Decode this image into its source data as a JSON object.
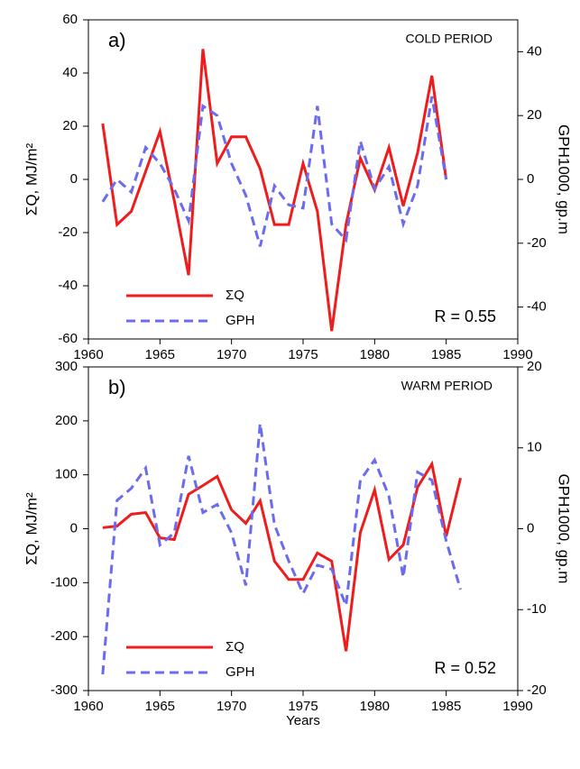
{
  "chart_data": [
    {
      "type": "line",
      "panel_label": "a)",
      "annotation": "COLD PERIOD",
      "r_label": "R = 0.55",
      "ylabel": "ΣQ, MJ/m²",
      "y2label": "GPH1000, gp.m",
      "legend": "lower left",
      "x": [
        1961,
        1962,
        1963,
        1964,
        1965,
        1966,
        1967,
        1968,
        1969,
        1970,
        1971,
        1972,
        1973,
        1974,
        1975,
        1976,
        1977,
        1978,
        1979,
        1980,
        1981,
        1982,
        1983,
        1984,
        1985
      ],
      "xlim": [
        1960,
        1990
      ],
      "xticks": [
        1960,
        1965,
        1970,
        1975,
        1980,
        1985,
        1990
      ],
      "ylim": [
        -60,
        60
      ],
      "yticks": [
        -60,
        -40,
        -20,
        0,
        20,
        40,
        60
      ],
      "y2lim": [
        -50,
        50
      ],
      "y2ticks": [
        -40,
        -20,
        0,
        20,
        40
      ],
      "series": [
        {
          "name": "ΣQ",
          "color": "#ee1c1c",
          "line_style": "solid",
          "values": [
            21,
            -17,
            -12,
            3,
            18,
            -8,
            -36,
            49,
            6,
            16,
            16,
            4,
            -17,
            -17,
            6,
            -12,
            -57,
            -17,
            8,
            -4,
            12,
            -10,
            10,
            39,
            0
          ]
        },
        {
          "name": "GPH",
          "color": "#6b6bf0",
          "line_style": "dashed",
          "axis": "y2",
          "values": [
            -7,
            0,
            -4,
            10,
            5,
            -3,
            -13,
            23,
            20,
            5,
            -5,
            -21,
            -2,
            -8,
            -9,
            23,
            -14,
            -19,
            12,
            -3,
            4,
            -14,
            -2,
            26,
            0
          ]
        }
      ]
    },
    {
      "type": "line",
      "panel_label": "b)",
      "annotation": "WARM PERIOD",
      "r_label": "R = 0.52",
      "xlabel": "Years",
      "ylabel": "ΣQ, MJ/m²",
      "y2label": "GPH1000, gp.m",
      "legend": "lower left",
      "x": [
        1961,
        1962,
        1963,
        1964,
        1965,
        1966,
        1967,
        1968,
        1969,
        1970,
        1971,
        1972,
        1973,
        1974,
        1975,
        1976,
        1977,
        1978,
        1979,
        1980,
        1981,
        1982,
        1983,
        1984,
        1985,
        1986
      ],
      "xlim": [
        1960,
        1990
      ],
      "xticks": [
        1960,
        1965,
        1970,
        1975,
        1980,
        1985,
        1990
      ],
      "ylim": [
        -300,
        300
      ],
      "yticks": [
        -300,
        -200,
        -100,
        0,
        100,
        200,
        300
      ],
      "y2lim": [
        -20,
        20
      ],
      "y2ticks": [
        -20,
        -10,
        0,
        10,
        20
      ],
      "series": [
        {
          "name": "ΣQ",
          "color": "#ee1c1c",
          "line_style": "solid",
          "values": [
            2,
            5,
            27,
            30,
            -17,
            -20,
            64,
            80,
            97,
            35,
            10,
            52,
            -60,
            -94,
            -94,
            -45,
            -60,
            -227,
            -7,
            72,
            -57,
            -30,
            77,
            120,
            -14,
            94
          ]
        },
        {
          "name": "GPH",
          "color": "#6b6bf0",
          "line_style": "dashed",
          "axis": "y2",
          "values": [
            -18,
            3.5,
            5,
            7.5,
            -2,
            -0.5,
            9,
            2,
            3,
            -0.5,
            -7,
            13,
            0.5,
            -4,
            -8,
            -4.5,
            -5,
            -9.5,
            6,
            8.5,
            4,
            -6,
            7,
            6,
            -1.5,
            -7.5
          ]
        }
      ]
    }
  ]
}
